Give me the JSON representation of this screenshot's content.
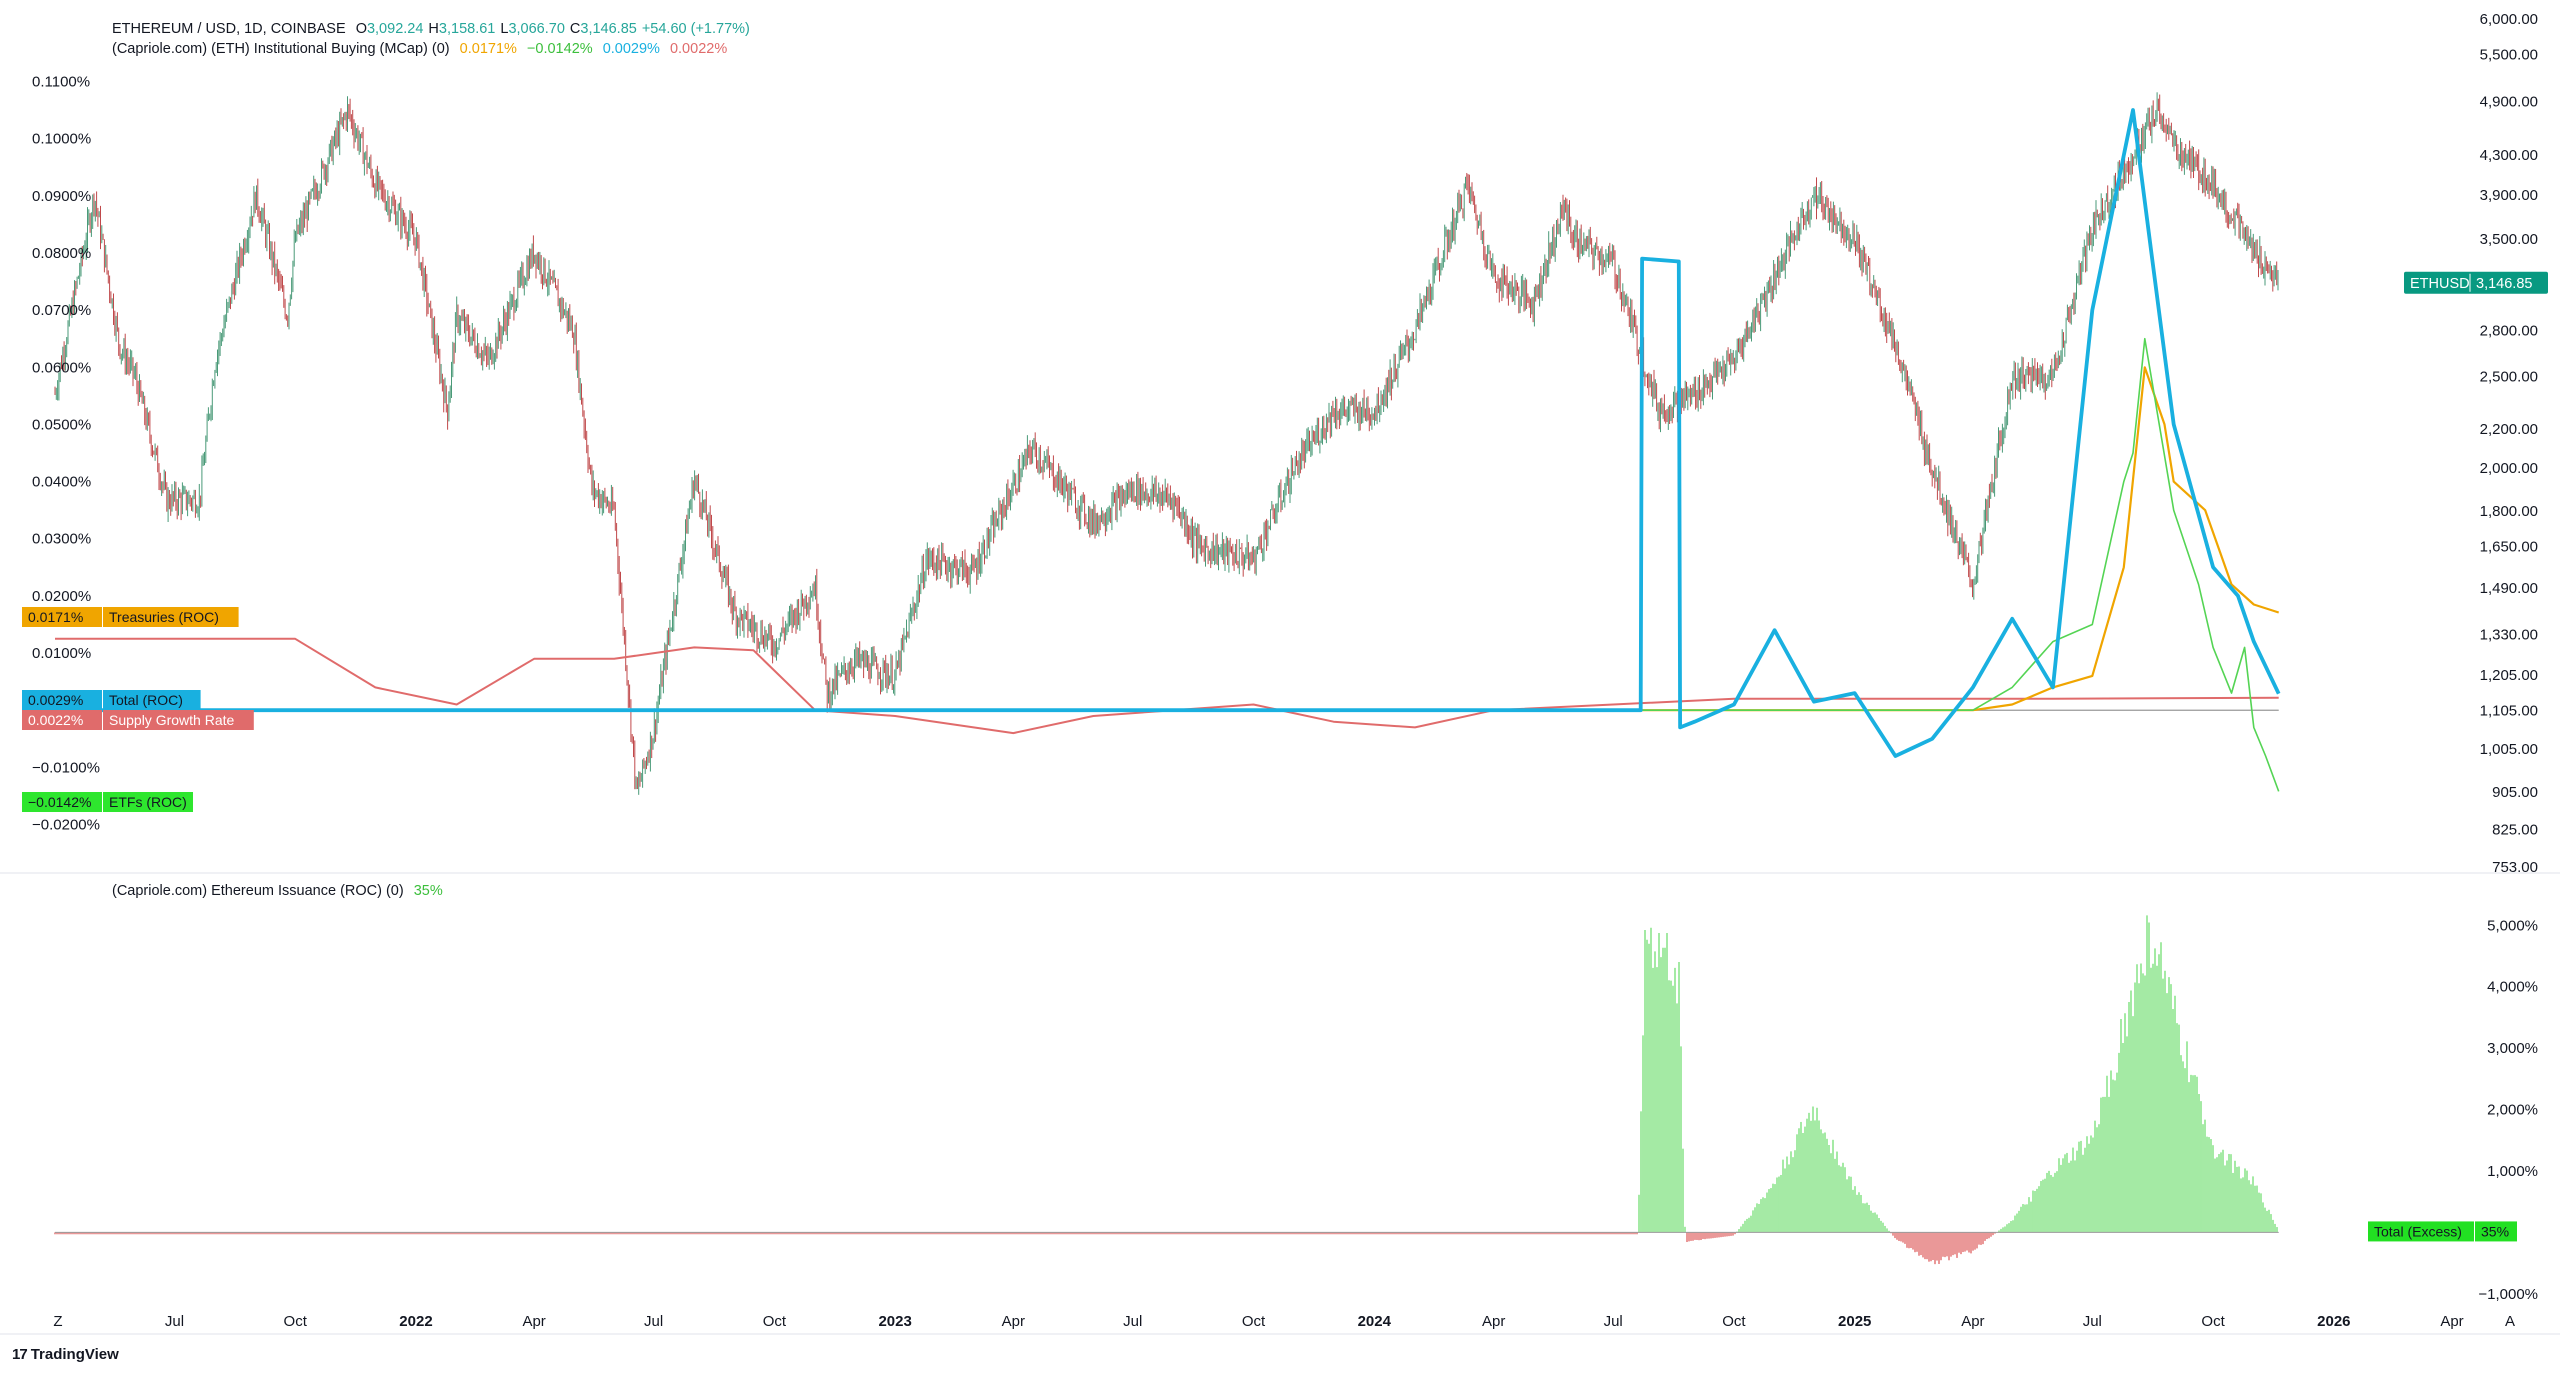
{
  "header": {
    "symbol": "ETHEREUM / USD, 1D, COINBASE",
    "o_label": "O",
    "o_value": "3,092.24",
    "h_label": "H",
    "h_value": "3,158.61",
    "l_label": "L",
    "l_value": "3,066.70",
    "c_label": "C",
    "c_value": "3,146.85",
    "change": "+54.60 (+1.77%)",
    "indicator1_name": "(Capriole.com) (ETH) Institutional Buying (MCap) (0)",
    "indicator1_values": [
      "0.0171%",
      "−0.0142%",
      "0.0029%",
      "0.0022%"
    ],
    "indicator2_name": "(Capriole.com) Ethereum Issuance (ROC) (0)",
    "indicator2_value": "35%",
    "branding": "TradingView"
  },
  "colors": {
    "up": "#26a69a",
    "down": "#ef5350",
    "price_up": "#4a9a78",
    "price_down": "#c0494b",
    "treasuries": "#f0a500",
    "total": "#19b0e0",
    "supply": "#e06b6b",
    "etfs": "#54d454",
    "excess_pos": "#7ee07e",
    "excess_neg": "#e06b6b",
    "baseline": "#999999"
  },
  "chart_data": [
    {
      "type": "line",
      "title": "ETHEREUM / USD, 1D, COINBASE",
      "scale": "log",
      "ylim": [
        753,
        6000
      ],
      "y_ticks": [
        "6,000.00",
        "5,500.00",
        "4,900.00",
        "4,300.00",
        "3,900.00",
        "3,500.00",
        "2,800.00",
        "2,500.00",
        "2,200.00",
        "2,000.00",
        "1,800.00",
        "1,650.00",
        "1,490.00",
        "1,330.00",
        "1,205.00",
        "1,105.00",
        "1,005.00",
        "905.00",
        "825.00",
        "753.00"
      ],
      "x_ticks": [
        "Z",
        "Jul",
        "Oct",
        "2022",
        "Apr",
        "Jul",
        "Oct",
        "2023",
        "Apr",
        "Jul",
        "Oct",
        "2024",
        "Apr",
        "Jul",
        "Oct",
        "2025",
        "Apr",
        "Jul",
        "Oct",
        "2026",
        "Apr",
        "A"
      ],
      "series": [
        {
          "name": "ETHUSD",
          "last": "3,146.85",
          "points": [
            [
              "2021-04",
              2400
            ],
            [
              "2021-05",
              3900
            ],
            [
              "2021-05-20",
              2700
            ],
            [
              "2021-06",
              2500
            ],
            [
              "2021-06-25",
              1850
            ],
            [
              "2021-07-20",
              1850
            ],
            [
              "2021-08",
              2600
            ],
            [
              "2021-09",
              3900
            ],
            [
              "2021-09-25",
              2900
            ],
            [
              "2021-10",
              3500
            ],
            [
              "2021-11-10",
              4800
            ],
            [
              "2021-12",
              4000
            ],
            [
              "2022-01",
              3500
            ],
            [
              "2022-01-25",
              2300
            ],
            [
              "2022-02",
              2900
            ],
            [
              "2022-02-25",
              2600
            ],
            [
              "2022-04",
              3400
            ],
            [
              "2022-05",
              2800
            ],
            [
              "2022-05-15",
              1900
            ],
            [
              "2022-06",
              1800
            ],
            [
              "2022-06-18",
              900
            ],
            [
              "2022-07",
              1050
            ],
            [
              "2022-08",
              1950
            ],
            [
              "2022-09",
              1400
            ],
            [
              "2022-10",
              1300
            ],
            [
              "2022-11",
              1500
            ],
            [
              "2022-11-10",
              1150
            ],
            [
              "2022-12",
              1250
            ],
            [
              "2023-01",
              1200
            ],
            [
              "2023-01-25",
              1600
            ],
            [
              "2023-03",
              1550
            ],
            [
              "2023-04-15",
              2100
            ],
            [
              "2023-06",
              1750
            ],
            [
              "2023-07",
              1900
            ],
            [
              "2023-08",
              1850
            ],
            [
              "2023-08-20",
              1650
            ],
            [
              "2023-10",
              1600
            ],
            [
              "2023-11",
              2000
            ],
            [
              "2023-12",
              2300
            ],
            [
              "2024-01",
              2300
            ],
            [
              "2024-02",
              2800
            ],
            [
              "2024-03-12",
              4000
            ],
            [
              "2024-04",
              3200
            ],
            [
              "2024-05",
              3000
            ],
            [
              "2024-05-25",
              3800
            ],
            [
              "2024-06",
              3500
            ],
            [
              "2024-07",
              3300
            ],
            [
              "2024-08-05",
              2300
            ],
            [
              "2024-09",
              2400
            ],
            [
              "2024-10",
              2600
            ],
            [
              "2024-11",
              3200
            ],
            [
              "2024-12",
              3900
            ],
            [
              "2025-01",
              3500
            ],
            [
              "2025-02",
              2700
            ],
            [
              "2025-03",
              2000
            ],
            [
              "2025-04",
              1500
            ],
            [
              "2025-05",
              2500
            ],
            [
              "2025-06",
              2500
            ],
            [
              "2025-07",
              3600
            ],
            [
              "2025-08-20",
              4800
            ],
            [
              "2025-09",
              4400
            ],
            [
              "2025-10",
              4000
            ],
            [
              "2025-11",
              3400
            ],
            [
              "2025-11-20",
              3146
            ]
          ]
        }
      ]
    },
    {
      "type": "line",
      "title": "(Capriole.com) (ETH) Institutional Buying (MCap) (0)",
      "ylim": [
        -0.022,
        0.112
      ],
      "y_ticks": [
        "0.1100%",
        "0.1000%",
        "0.0900%",
        "0.0800%",
        "0.0700%",
        "0.0600%",
        "0.0500%",
        "0.0400%",
        "0.0300%",
        "0.0200%",
        "0.0100%",
        "−0.0100%",
        "−0.0200%"
      ],
      "series": [
        {
          "name": "Treasuries (ROC)",
          "last": "0.0171%",
          "points": [
            [
              "2021-04",
              0.0
            ],
            [
              "2025-04",
              0.0
            ],
            [
              "2025-05",
              0.001
            ],
            [
              "2025-06",
              0.004
            ],
            [
              "2025-07",
              0.006
            ],
            [
              "2025-07-25",
              0.025
            ],
            [
              "2025-08-10",
              0.06
            ],
            [
              "2025-08-25",
              0.05
            ],
            [
              "2025-09",
              0.04
            ],
            [
              "2025-09-25",
              0.035
            ],
            [
              "2025-10-15",
              0.022
            ],
            [
              "2025-11",
              0.0185
            ],
            [
              "2025-11-20",
              0.0171
            ]
          ]
        },
        {
          "name": "Total (ROC)",
          "last": "0.0029%",
          "points": [
            [
              "2021-04",
              0.0
            ],
            [
              "2024-07-22",
              0.0
            ],
            [
              "2024-07-23",
              0.079
            ],
            [
              "2024-08-20",
              0.0785
            ],
            [
              "2024-08-21",
              -0.003
            ],
            [
              "2024-09",
              -0.002
            ],
            [
              "2024-10",
              0.001
            ],
            [
              "2024-11",
              0.014
            ],
            [
              "2024-12",
              0.0015
            ],
            [
              "2025-01",
              0.003
            ],
            [
              "2025-02",
              -0.008
            ],
            [
              "2025-03",
              -0.005
            ],
            [
              "2025-04",
              0.004
            ],
            [
              "2025-05",
              0.016
            ],
            [
              "2025-06",
              0.004
            ],
            [
              "2025-07",
              0.07
            ],
            [
              "2025-08",
              0.105
            ],
            [
              "2025-08-15",
              0.08
            ],
            [
              "2025-09",
              0.05
            ],
            [
              "2025-10",
              0.025
            ],
            [
              "2025-10-20",
              0.02
            ],
            [
              "2025-11",
              0.012
            ],
            [
              "2025-11-20",
              0.0029
            ]
          ]
        },
        {
          "name": "Supply Growth Rate",
          "last": "0.0022%",
          "points": [
            [
              "2021-04",
              0.0125
            ],
            [
              "2021-10",
              0.0125
            ],
            [
              "2021-12",
              0.004
            ],
            [
              "2022-02",
              0.001
            ],
            [
              "2022-04",
              0.009
            ],
            [
              "2022-06",
              0.009
            ],
            [
              "2022-08",
              0.011
            ],
            [
              "2022-09-15",
              0.0105
            ],
            [
              "2022-11",
              0.0
            ],
            [
              "2023-01",
              -0.001
            ],
            [
              "2023-04",
              -0.004
            ],
            [
              "2023-06",
              -0.001
            ],
            [
              "2023-08",
              0.0
            ],
            [
              "2023-10",
              0.001
            ],
            [
              "2023-12",
              -0.002
            ],
            [
              "2024-02",
              -0.003
            ],
            [
              "2024-04",
              0.0
            ],
            [
              "2024-07",
              0.001
            ],
            [
              "2024-10",
              0.002
            ],
            [
              "2025-01",
              0.002
            ],
            [
              "2025-06",
              0.002
            ],
            [
              "2025-11-20",
              0.0022
            ]
          ]
        },
        {
          "name": "ETFs (ROC)",
          "last": "−0.0142%",
          "points": [
            [
              "2024-07-22",
              0.0
            ],
            [
              "2025-04",
              0.0
            ],
            [
              "2025-05",
              0.004
            ],
            [
              "2025-06",
              0.012
            ],
            [
              "2025-07",
              0.015
            ],
            [
              "2025-07-25",
              0.04
            ],
            [
              "2025-08",
              0.045
            ],
            [
              "2025-08-10",
              0.065
            ],
            [
              "2025-09",
              0.035
            ],
            [
              "2025-09-20",
              0.022
            ],
            [
              "2025-10",
              0.011
            ],
            [
              "2025-10-15",
              0.003
            ],
            [
              "2025-10-25",
              0.011
            ],
            [
              "2025-11",
              -0.003
            ],
            [
              "2025-11-10",
              -0.008
            ],
            [
              "2025-11-20",
              -0.0142
            ]
          ]
        }
      ]
    },
    {
      "type": "bar",
      "title": "(Capriole.com) Ethereum Issuance (ROC) (0)",
      "ylim": [
        -1100,
        5200
      ],
      "y_ticks": [
        "5,000%",
        "4,000%",
        "3,000%",
        "2,000%",
        "1,000%",
        "−1,000%"
      ],
      "series": [
        {
          "name": "Total (Excess)",
          "last": "35%",
          "points": [
            [
              "2021-04",
              -30
            ],
            [
              "2024-07-20",
              -30
            ],
            [
              "2024-07-25",
              4800
            ],
            [
              "2024-08-20",
              4200
            ],
            [
              "2024-08-25",
              -150
            ],
            [
              "2024-10",
              -50
            ],
            [
              "2024-11",
              800
            ],
            [
              "2024-12",
              2000
            ],
            [
              "2025-01",
              700
            ],
            [
              "2025-02",
              -100
            ],
            [
              "2025-03",
              -500
            ],
            [
              "2025-04",
              -300
            ],
            [
              "2025-05",
              200
            ],
            [
              "2025-06",
              1000
            ],
            [
              "2025-07",
              1500
            ],
            [
              "2025-08-15",
              4900
            ],
            [
              "2025-09",
              3500
            ],
            [
              "2025-10",
              1400
            ],
            [
              "2025-11",
              800
            ],
            [
              "2025-11-20",
              35
            ]
          ]
        }
      ]
    }
  ]
}
